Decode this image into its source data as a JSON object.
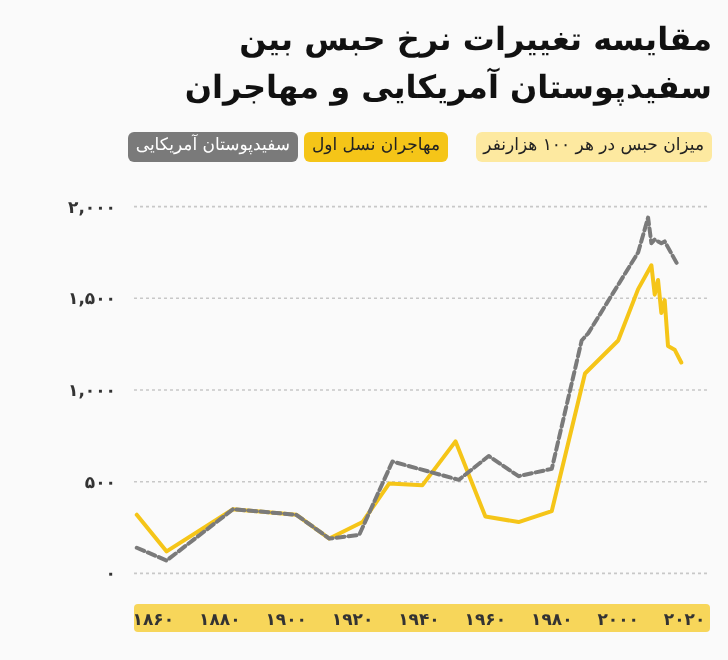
{
  "chart_data": {
    "type": "line",
    "title": "مقایسه تغییرات نرخ حبس بین سفیدپوستان آمریکایی و مهاجران",
    "ylabel": "میزان حبس در هر ۱۰۰ هزارنفر",
    "series": [
      {
        "name": "مهاجران نسل اول",
        "color": "#f5c518",
        "line_style": "solid",
        "x": [
          1855,
          1864,
          1884,
          1903,
          1913,
          1923,
          1931,
          1941,
          1951,
          1960,
          1970,
          1980,
          1990,
          2000,
          2006,
          2010,
          2011,
          2012,
          2013,
          2014,
          2015,
          2017,
          2019
        ],
        "values": [
          320,
          120,
          350,
          320,
          190,
          280,
          490,
          480,
          720,
          310,
          280,
          340,
          1090,
          1270,
          1550,
          1680,
          1520,
          1600,
          1420,
          1490,
          1240,
          1220,
          1150
        ]
      },
      {
        "name": "سفیدپوستان آمریکایی",
        "color": "#7a7a7a",
        "line_style": "dashed",
        "x": [
          1855,
          1864,
          1884,
          1903,
          1913,
          1922,
          1932,
          1952,
          1961,
          1970,
          1980,
          1989,
          1991,
          2006,
          2009,
          2010,
          2011,
          2013,
          2014,
          2018
        ],
        "values": [
          140,
          70,
          350,
          320,
          190,
          210,
          610,
          510,
          640,
          530,
          570,
          1270,
          1310,
          1750,
          1940,
          1800,
          1820,
          1800,
          1810,
          1680
        ]
      }
    ],
    "xlim": [
      1852,
      2025
    ],
    "ylim": [
      0,
      2000
    ],
    "xticks": [
      {
        "value": 1860,
        "label": "۱۸۶۰"
      },
      {
        "value": 1880,
        "label": "۱۸۸۰"
      },
      {
        "value": 1900,
        "label": "۱۹۰۰"
      },
      {
        "value": 1920,
        "label": "۱۹۲۰"
      },
      {
        "value": 1940,
        "label": "۱۹۴۰"
      },
      {
        "value": 1960,
        "label": "۱۹۶۰"
      },
      {
        "value": 1980,
        "label": "۱۹۸۰"
      },
      {
        "value": 2000,
        "label": "۲۰۰۰"
      },
      {
        "value": 2020,
        "label": "۲۰۲۰"
      }
    ],
    "yticks": [
      {
        "value": 0,
        "label": "۰"
      },
      {
        "value": 500,
        "label": "۵۰۰"
      },
      {
        "value": 1000,
        "label": "۱,۰۰۰"
      },
      {
        "value": 1500,
        "label": "۱,۵۰۰"
      },
      {
        "value": 2000,
        "label": "۲,۰۰۰"
      }
    ],
    "grid": "y",
    "legend": "top left"
  }
}
